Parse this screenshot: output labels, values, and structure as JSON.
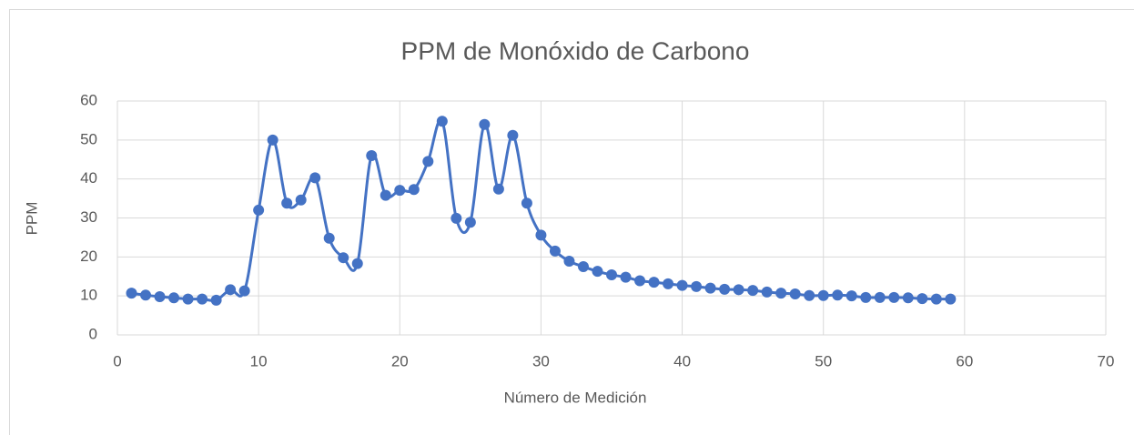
{
  "chart_data": {
    "type": "scatter",
    "title": "PPM de Monóxido de Carbono",
    "x_label": "Número de Medición",
    "y_label": "PPM",
    "series": [
      {
        "color": "#4472c4",
        "x": [
          1,
          2,
          3,
          4,
          5,
          6,
          7,
          8,
          9,
          10,
          11,
          12,
          13,
          14,
          15,
          16,
          17,
          18,
          19,
          20,
          21,
          22,
          23,
          24,
          25,
          26,
          27,
          28,
          29,
          30,
          31,
          32,
          33,
          34,
          35,
          36,
          37,
          38,
          39,
          40,
          41,
          42,
          43,
          44,
          45,
          46,
          47,
          48,
          49,
          50,
          51,
          52,
          53,
          54,
          55,
          56,
          57,
          58,
          59
        ],
        "values": [
          10.7,
          10.2,
          9.8,
          9.5,
          9.2,
          9.2,
          8.9,
          11.6,
          11.3,
          32,
          50,
          33.8,
          34.6,
          40.3,
          24.8,
          19.8,
          18.3,
          46,
          35.8,
          37.1,
          37.3,
          44.5,
          54.8,
          29.9,
          28.9,
          54,
          37.4,
          51.2,
          33.8,
          25.6,
          21.5,
          18.9,
          17.5,
          16.3,
          15.4,
          14.8,
          13.9,
          13.5,
          13.1,
          12.7,
          12.4,
          12,
          11.7,
          11.6,
          11.4,
          11,
          10.7,
          10.5,
          10.1,
          10.1,
          10.2,
          10,
          9.6,
          9.6,
          9.6,
          9.5,
          9.3,
          9.2,
          9.2
        ]
      }
    ],
    "xlim": [
      0,
      70
    ],
    "xticks": [
      0,
      10,
      20,
      30,
      40,
      50,
      60,
      70
    ],
    "ylim": [
      0,
      60
    ],
    "yticks": [
      0,
      10,
      20,
      30,
      40,
      50,
      60
    ],
    "grid": true,
    "smooth": true
  }
}
